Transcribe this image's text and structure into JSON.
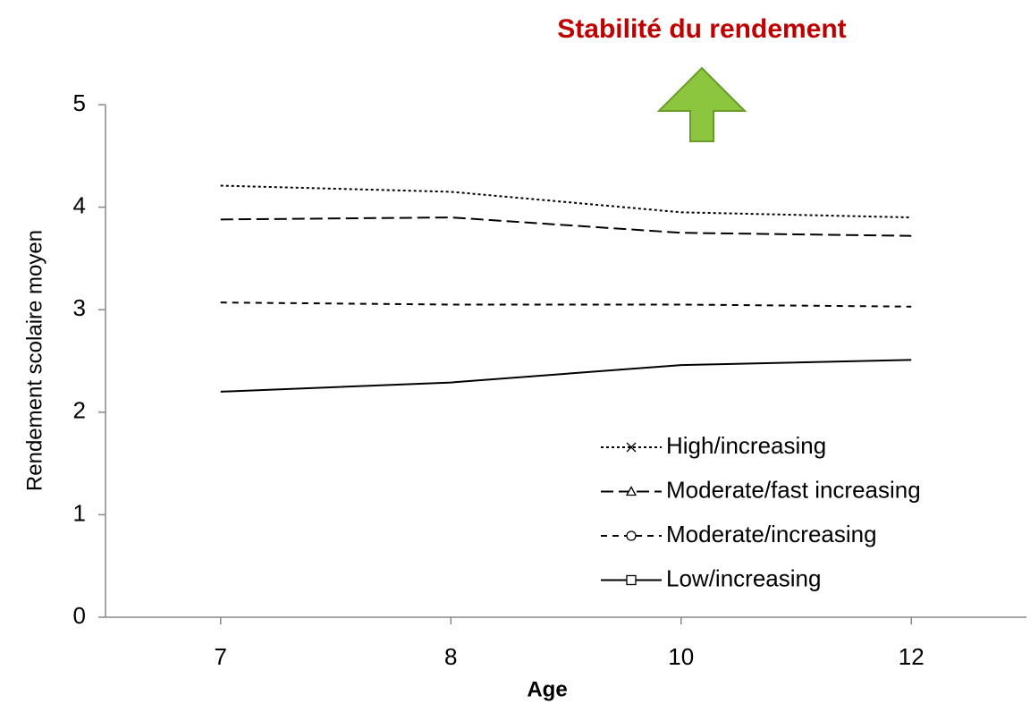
{
  "chart_data": {
    "type": "line",
    "title": "Stabilité du rendement",
    "xlabel": "Age",
    "ylabel": "Rendement scolaire moyen",
    "categories": [
      "7",
      "8",
      "10",
      "12"
    ],
    "series": [
      {
        "name": "High/increasing",
        "color": "#000000",
        "dash": "3,3",
        "marker": "x",
        "values": [
          4.21,
          4.15,
          3.95,
          3.9
        ]
      },
      {
        "name": "Moderate/fast increasing",
        "color": "#000000",
        "dash": "14,6",
        "marker": "triangle",
        "values": [
          3.88,
          3.9,
          3.75,
          3.72
        ]
      },
      {
        "name": "Moderate/increasing",
        "color": "#000000",
        "dash": "7,6",
        "marker": "circle",
        "values": [
          3.07,
          3.05,
          3.05,
          3.03
        ]
      },
      {
        "name": "Low/increasing",
        "color": "#000000",
        "dash": "none",
        "marker": "square",
        "values": [
          2.2,
          2.29,
          2.46,
          2.51
        ]
      }
    ],
    "ylim": [
      0,
      5
    ],
    "yticks": [
      0,
      1,
      2,
      3,
      4,
      5
    ],
    "grid": false,
    "legend": "lower right"
  }
}
